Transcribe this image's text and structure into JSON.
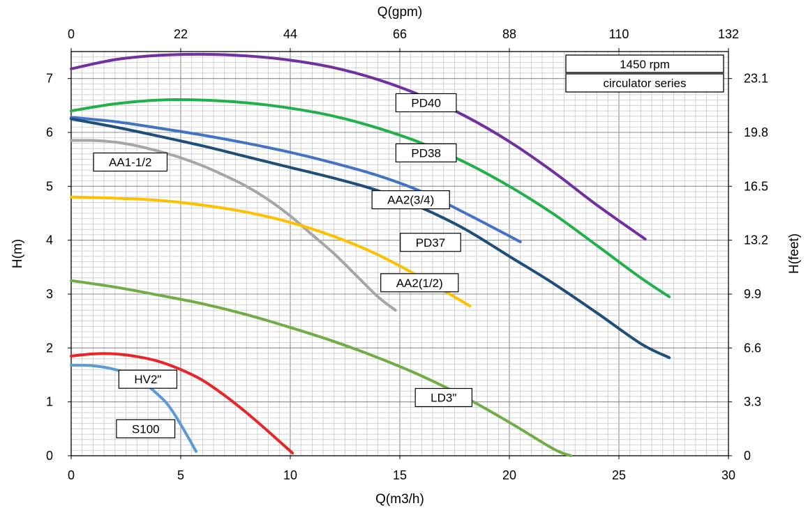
{
  "chart_data": {
    "type": "line",
    "xlabel": "Q(m3/h)",
    "x2label": "Q(gpm)",
    "ylabel": "H(m)",
    "y2label": "H(feet)",
    "xlim": [
      0,
      30
    ],
    "ylim": [
      0,
      7.5
    ],
    "grid": true,
    "x_ticks": [
      "0",
      "5",
      "10",
      "15",
      "20",
      "25",
      "30"
    ],
    "y_ticks": [
      "0",
      "1",
      "2",
      "3",
      "4",
      "5",
      "6",
      "7"
    ],
    "x2_ticks": [
      "0",
      "22",
      "44",
      "66",
      "88",
      "110",
      "132"
    ],
    "y2_ticks": [
      "0",
      "3.3",
      "6.6",
      "9.9",
      "13.2",
      "16.5",
      "19.8",
      "23.1"
    ],
    "info_boxes": [
      "1450 rpm",
      "circulator series"
    ],
    "series": [
      {
        "name": "PD40",
        "color": "#7030A0",
        "x": [
          0,
          2,
          4,
          6,
          8,
          10,
          12,
          14,
          16,
          18,
          20,
          22,
          24,
          26.2
        ],
        "y": [
          7.18,
          7.35,
          7.43,
          7.45,
          7.42,
          7.34,
          7.2,
          6.98,
          6.68,
          6.3,
          5.83,
          5.27,
          4.65,
          4.02
        ]
      },
      {
        "name": "PD38",
        "color": "#21B04B",
        "x": [
          0,
          2,
          4,
          6,
          8,
          10,
          12,
          14,
          16,
          18,
          20,
          22,
          24,
          26,
          27.3
        ],
        "y": [
          6.4,
          6.53,
          6.6,
          6.6,
          6.55,
          6.45,
          6.3,
          6.08,
          5.8,
          5.44,
          5.0,
          4.49,
          3.9,
          3.3,
          2.95
        ]
      },
      {
        "name": "AA2(3/4)",
        "color": "#4472C4",
        "x": [
          0,
          2,
          4,
          6,
          8,
          10,
          12,
          14,
          16,
          18,
          20.5
        ],
        "y": [
          6.28,
          6.2,
          6.08,
          5.95,
          5.8,
          5.63,
          5.43,
          5.2,
          4.9,
          4.5,
          3.97
        ]
      },
      {
        "name": "PD37",
        "color": "#1F4E79",
        "x": [
          0,
          2,
          4,
          6,
          8,
          10,
          12,
          14,
          16,
          18,
          20,
          22,
          24,
          26,
          27.3
        ],
        "y": [
          6.25,
          6.1,
          5.93,
          5.75,
          5.55,
          5.35,
          5.15,
          4.92,
          4.6,
          4.2,
          3.7,
          3.2,
          2.65,
          2.08,
          1.82
        ]
      },
      {
        "name": "AA1-1/2",
        "color": "#A6A6A6",
        "x": [
          0,
          1,
          2,
          3,
          4,
          5,
          6,
          7,
          8,
          9,
          10,
          11,
          12,
          13,
          14,
          14.8
        ],
        "y": [
          5.85,
          5.85,
          5.82,
          5.75,
          5.65,
          5.53,
          5.38,
          5.2,
          5.0,
          4.75,
          4.45,
          4.1,
          3.75,
          3.35,
          2.95,
          2.7
        ]
      },
      {
        "name": "AA2(1/2)",
        "color": "#FFC000",
        "x": [
          0,
          2,
          4,
          6,
          8,
          10,
          12,
          14,
          16,
          18.2
        ],
        "y": [
          4.8,
          4.78,
          4.74,
          4.65,
          4.52,
          4.33,
          4.07,
          3.73,
          3.3,
          2.78
        ]
      },
      {
        "name": "LD3\"",
        "color": "#70AD47",
        "x": [
          0,
          2,
          4,
          6,
          8,
          10,
          12,
          14,
          16,
          18,
          20,
          22,
          22.8
        ],
        "y": [
          3.25,
          3.13,
          2.98,
          2.82,
          2.62,
          2.38,
          2.12,
          1.82,
          1.48,
          1.08,
          0.62,
          0.13,
          0.0
        ]
      },
      {
        "name": "HV2\"",
        "color": "#E8262A",
        "x": [
          0,
          1,
          2,
          3,
          4,
          5,
          6,
          7,
          8,
          9,
          10.1
        ],
        "y": [
          1.85,
          1.89,
          1.89,
          1.84,
          1.75,
          1.6,
          1.4,
          1.12,
          0.8,
          0.45,
          0.05
        ]
      },
      {
        "name": "S100",
        "color": "#5B9BD5",
        "x": [
          0,
          1,
          2,
          3,
          4,
          4.5,
          5,
          5.4,
          5.7
        ],
        "y": [
          1.68,
          1.67,
          1.6,
          1.45,
          1.12,
          0.9,
          0.58,
          0.3,
          0.08
        ]
      }
    ],
    "labels": [
      {
        "text": "PD40",
        "x": 16.2,
        "y": 6.55
      },
      {
        "text": "PD38",
        "x": 16.2,
        "y": 5.62
      },
      {
        "text": "AA2(3/4)",
        "x": 15.5,
        "y": 4.75
      },
      {
        "text": "PD37",
        "x": 16.4,
        "y": 3.96
      },
      {
        "text": "AA1-1/2",
        "x": 2.7,
        "y": 5.45
      },
      {
        "text": "AA2(1/2)",
        "x": 15.9,
        "y": 3.21
      },
      {
        "text": "LD3\"",
        "x": 17.0,
        "y": 1.08
      },
      {
        "text": "HV2\"",
        "x": 3.5,
        "y": 1.42
      },
      {
        "text": "S100",
        "x": 3.4,
        "y": 0.5
      }
    ]
  }
}
